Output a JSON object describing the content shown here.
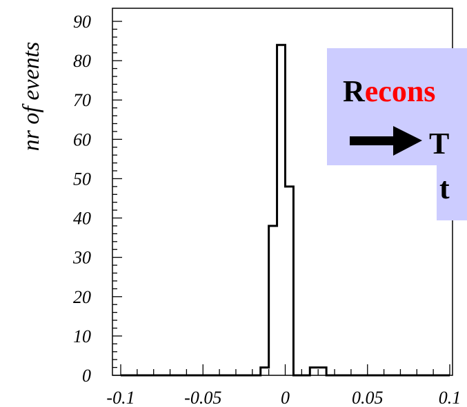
{
  "chart_data": {
    "type": "histogram",
    "ylabel": "nr of events",
    "xlabel": "",
    "xlim": [
      -0.1,
      0.1
    ],
    "ylim": [
      0,
      90
    ],
    "x_ticks": [
      {
        "value": -0.1,
        "label": "-0.1"
      },
      {
        "value": -0.05,
        "label": "-0.05"
      },
      {
        "value": 0,
        "label": "0"
      },
      {
        "value": 0.05,
        "label": "0.05"
      },
      {
        "value": 0.1,
        "label": "0.1"
      }
    ],
    "y_ticks": [
      {
        "value": 0,
        "label": "0"
      },
      {
        "value": 10,
        "label": "10"
      },
      {
        "value": 20,
        "label": "20"
      },
      {
        "value": 30,
        "label": "30"
      },
      {
        "value": 40,
        "label": "40"
      },
      {
        "value": 50,
        "label": "50"
      },
      {
        "value": 60,
        "label": "60"
      },
      {
        "value": 70,
        "label": "70"
      },
      {
        "value": 80,
        "label": "80"
      },
      {
        "value": 90,
        "label": "90"
      }
    ],
    "bins": [
      {
        "x0": -0.015,
        "x1": -0.01,
        "count": 2
      },
      {
        "x0": -0.01,
        "x1": -0.005,
        "count": 38
      },
      {
        "x0": -0.005,
        "x1": 0.0,
        "count": 84
      },
      {
        "x0": 0.0,
        "x1": 0.005,
        "count": 48
      },
      {
        "x0": 0.005,
        "x1": 0.01,
        "count": 0
      },
      {
        "x0": 0.01,
        "x1": 0.015,
        "count": 0
      },
      {
        "x0": 0.015,
        "x1": 0.02,
        "count": 2
      },
      {
        "x0": 0.02,
        "x1": 0.025,
        "count": 2
      }
    ],
    "grid": false
  },
  "overlay": {
    "box_color": "#ccccff",
    "line1_first_letter": "R",
    "line1_rest": "econs",
    "line2_letter": "T",
    "line3_letter": "t",
    "first_letter_color": "#000000",
    "rest_color": "#ff0000"
  }
}
